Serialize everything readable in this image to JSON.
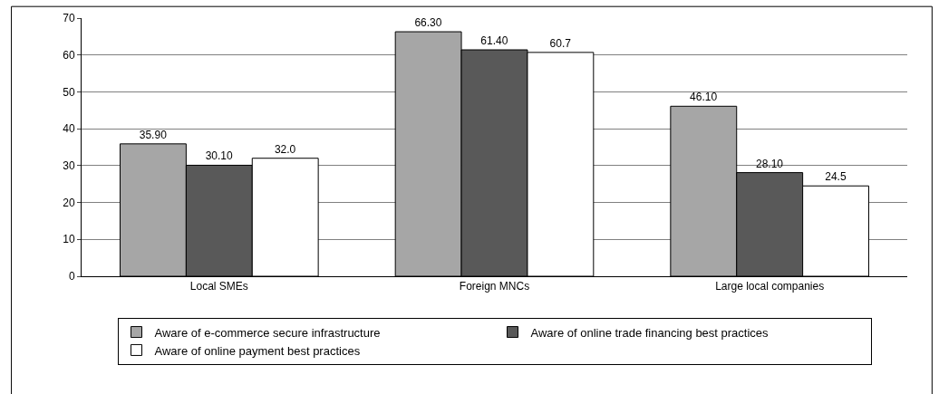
{
  "chart_data": {
    "type": "bar",
    "categories": [
      "Local SMEs",
      "Foreign MNCs",
      "Large local companies"
    ],
    "series": [
      {
        "name": "Aware of e-commerce secure infrastructure",
        "color": "#a6a6a6",
        "values": [
          35.9,
          66.3,
          46.1
        ],
        "value_labels": [
          "35.90",
          "66.30",
          "46.10"
        ]
      },
      {
        "name": "Aware of online trade financing best practices",
        "color": "#595959",
        "values": [
          30.1,
          61.4,
          28.1
        ],
        "value_labels": [
          "30.10",
          "61.40",
          "28.10"
        ]
      },
      {
        "name": "Aware of online payment best practices",
        "color": "#ffffff",
        "values": [
          32.0,
          60.7,
          24.5
        ],
        "value_labels": [
          "32.0",
          "60.7",
          "24.5"
        ]
      }
    ],
    "ylim": [
      0,
      70
    ],
    "yticks": [
      0,
      10,
      20,
      30,
      40,
      50,
      60,
      70
    ],
    "grid": "y",
    "legend": "bottom"
  }
}
